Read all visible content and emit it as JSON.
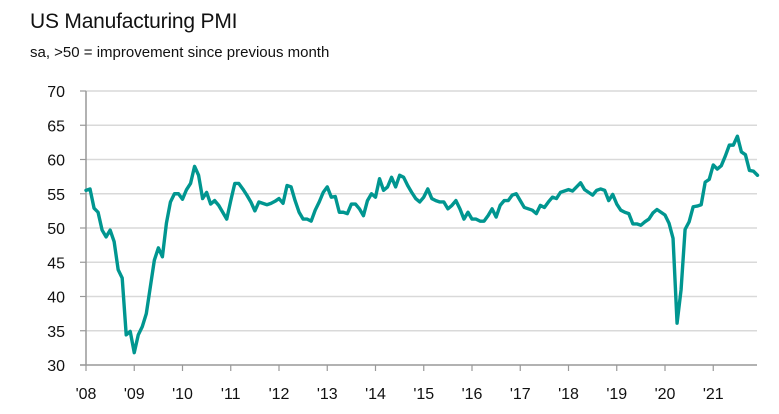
{
  "chart_data": {
    "type": "line",
    "title": "US Manufacturing PMI",
    "subtitle": "sa, >50 = improvement since previous month",
    "xlabel": "",
    "ylabel": "",
    "ylim": [
      30,
      70
    ],
    "yticks": [
      30,
      35,
      40,
      45,
      50,
      55,
      60,
      65,
      70
    ],
    "ytick_labels": [
      "30",
      "35",
      "40",
      "45",
      "50",
      "55",
      "60",
      "65",
      "70"
    ],
    "xtick_labels": [
      "'08",
      "'09",
      "'10",
      "'11",
      "'12",
      "'13",
      "'14",
      "'15",
      "'16",
      "'17",
      "'18",
      "'19",
      "'20",
      "'21"
    ],
    "x_start": "2008-01",
    "x_frequency": "monthly",
    "x_range_years": [
      2008,
      2022
    ],
    "grid": "horizontal",
    "line_color": "#009690",
    "series": [
      {
        "name": "US Manufacturing PMI",
        "values": [
          55.5,
          55.7,
          52.9,
          52.3,
          49.7,
          48.7,
          49.7,
          48.0,
          43.9,
          42.7,
          34.4,
          34.9,
          31.8,
          34.4,
          35.6,
          37.5,
          41.4,
          45.3,
          47.1,
          45.8,
          50.7,
          53.8,
          55.0,
          55.0,
          54.2,
          55.6,
          56.5,
          59.0,
          57.7,
          54.3,
          55.2,
          53.5,
          54.0,
          53.3,
          52.3,
          51.3,
          54.0,
          56.5,
          56.5,
          55.7,
          54.8,
          53.8,
          52.5,
          53.8,
          53.6,
          53.4,
          53.6,
          53.9,
          54.3,
          53.6,
          56.2,
          56.0,
          54.0,
          52.3,
          51.3,
          51.3,
          51.0,
          52.6,
          53.8,
          55.2,
          56.0,
          54.5,
          54.6,
          52.3,
          52.3,
          52.1,
          53.5,
          53.5,
          52.8,
          51.8,
          54.0,
          55.0,
          54.5,
          57.2,
          55.5,
          56.0,
          57.4,
          56.0,
          57.7,
          57.4,
          56.2,
          55.2,
          54.3,
          53.8,
          54.5,
          55.7,
          54.3,
          54.0,
          53.8,
          53.8,
          52.8,
          53.3,
          54.0,
          52.8,
          51.3,
          52.3,
          51.3,
          51.3,
          51.0,
          51.0,
          51.8,
          52.8,
          51.6,
          53.3,
          54.0,
          54.0,
          54.8,
          55.0,
          54.0,
          53.0,
          52.8,
          52.6,
          52.1,
          53.3,
          53.0,
          53.8,
          54.5,
          54.3,
          55.2,
          55.4,
          55.6,
          55.4,
          56.0,
          56.6,
          55.6,
          55.2,
          54.8,
          55.5,
          55.7,
          55.5,
          54.0,
          54.9,
          53.5,
          52.6,
          52.3,
          52.1,
          50.6,
          50.6,
          50.4,
          50.9,
          51.3,
          52.2,
          52.7,
          52.3,
          51.9,
          50.7,
          48.5,
          36.1,
          41.0,
          49.8,
          50.9,
          53.1,
          53.2,
          53.4,
          56.7,
          57.1,
          59.2,
          58.6,
          59.1,
          60.5,
          62.1,
          62.1,
          63.4,
          61.1,
          60.7,
          58.4,
          58.3,
          57.7
        ]
      }
    ]
  }
}
